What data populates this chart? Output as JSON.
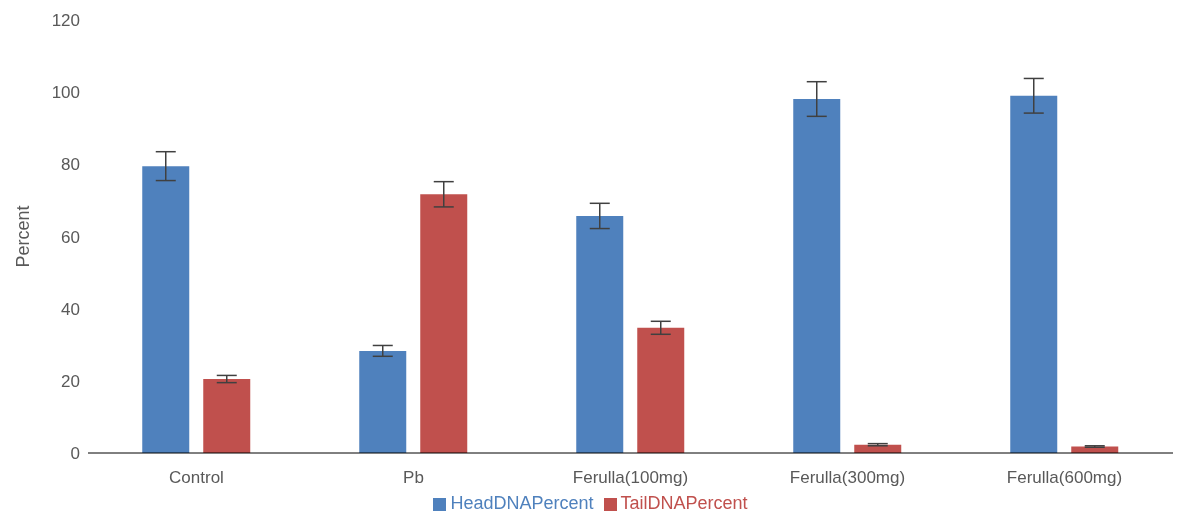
{
  "chart_data": {
    "type": "bar",
    "ylabel": "Percent",
    "categories": [
      "Control",
      "Pb",
      "Ferulla(100mg)",
      "Ferulla(300mg)",
      "Ferulla(600mg)"
    ],
    "series": [
      {
        "name": "HeadDNAPercent",
        "color": "#4f81bd",
        "values": [
          79.5,
          28.3,
          65.7,
          98.1,
          99
        ],
        "errors": [
          4,
          1.5,
          3.5,
          4.8,
          4.8
        ]
      },
      {
        "name": "TailDNAPercent",
        "color": "#c0504d",
        "values": [
          20.5,
          71.7,
          34.7,
          2.3,
          1.8
        ],
        "errors": [
          1,
          3.5,
          1.8,
          0.3,
          0.2
        ]
      }
    ],
    "ylim": [
      0,
      120
    ],
    "yticks": [
      0,
      20,
      40,
      60,
      80,
      100,
      120
    ],
    "grid": false,
    "legend": "bottom"
  }
}
